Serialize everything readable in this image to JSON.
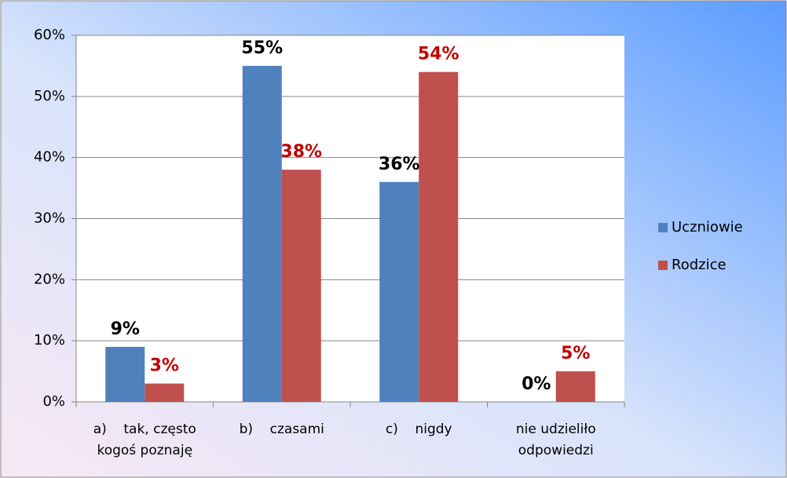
{
  "chart_data": {
    "type": "bar",
    "categories": [
      "a)    tak, często kogoś poznaję",
      "b)    czasami",
      "c)    nigdy",
      "nie udzieliło odpowiedzi"
    ],
    "series": [
      {
        "name": "Uczniowie",
        "color": "#4f81bd",
        "label_color": "#000000",
        "values": [
          9,
          55,
          36,
          0
        ],
        "value_labels": [
          "9%",
          "55%",
          "36%",
          "0%"
        ]
      },
      {
        "name": "Rodzice",
        "color": "#c0504d",
        "label_color": "#c00000",
        "values": [
          3,
          38,
          54,
          5
        ],
        "value_labels": [
          "3%",
          "38%",
          "54%",
          "5%"
        ]
      }
    ],
    "ylim": [
      0,
      60
    ],
    "yticks": [
      {
        "value": 0,
        "label": "0%"
      },
      {
        "value": 10,
        "label": "10%"
      },
      {
        "value": 20,
        "label": "20%"
      },
      {
        "value": 30,
        "label": "30%"
      },
      {
        "value": 40,
        "label": "40%"
      },
      {
        "value": 50,
        "label": "50%"
      },
      {
        "value": 60,
        "label": "60%"
      }
    ],
    "grid": true,
    "legend": "right"
  }
}
